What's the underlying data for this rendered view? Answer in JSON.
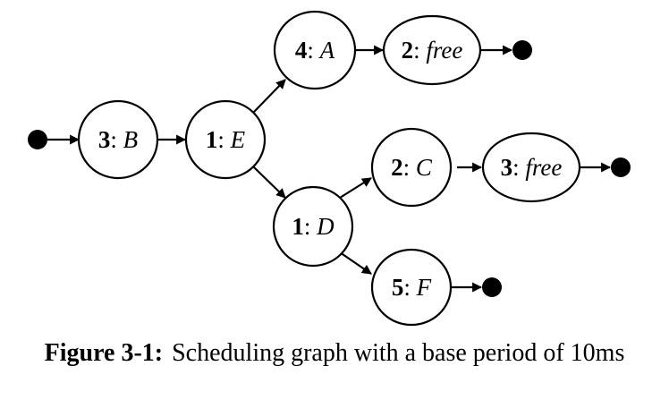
{
  "nodes": [
    {
      "id": "B",
      "weight": "3",
      "sep": ": ",
      "task": "B"
    },
    {
      "id": "E",
      "weight": "1",
      "sep": ": ",
      "task": "E"
    },
    {
      "id": "A",
      "weight": "4",
      "sep": ": ",
      "task": "A"
    },
    {
      "id": "free1",
      "weight": "2",
      "sep": ": ",
      "task": "free"
    },
    {
      "id": "D",
      "weight": "1",
      "sep": ": ",
      "task": "D"
    },
    {
      "id": "C",
      "weight": "2",
      "sep": ": ",
      "task": "C"
    },
    {
      "id": "free2",
      "weight": "3",
      "sep": ": ",
      "task": "free"
    },
    {
      "id": "F",
      "weight": "5",
      "sep": ": ",
      "task": "F"
    }
  ],
  "caption": {
    "label": "Figure 3-1:",
    "text": "Scheduling graph with a base period of 10ms"
  }
}
